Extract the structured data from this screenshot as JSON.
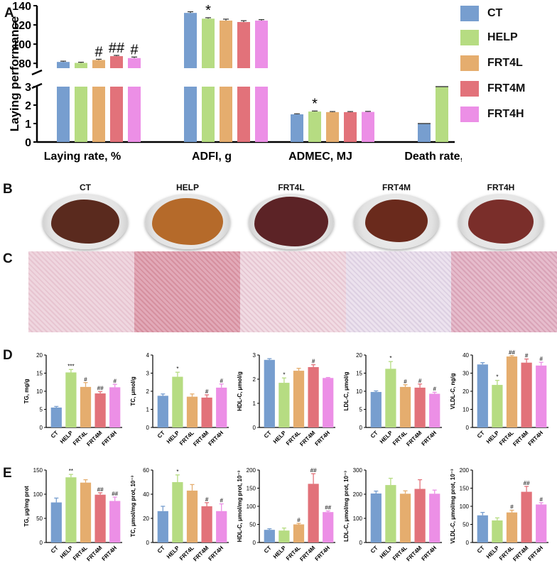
{
  "panel_labels": {
    "a": "A",
    "b": "B",
    "c": "C",
    "d": "D",
    "e": "E"
  },
  "colors": {
    "CT": "#779ecf",
    "HELP": "#b6dc82",
    "FRT4L": "#e5ad6e",
    "FRT4M": "#e2727a",
    "FRT4H": "#ec8fe6"
  },
  "legend": [
    {
      "label": "CT",
      "color": "#779ecf"
    },
    {
      "label": "HELP",
      "color": "#b6dc82"
    },
    {
      "label": "FRT4L",
      "color": "#e5ad6e"
    },
    {
      "label": "FRT4M",
      "color": "#e2727a"
    },
    {
      "label": "FRT4H",
      "color": "#ec8fe6"
    }
  ],
  "photos": {
    "titles": [
      "CT",
      "HELP",
      "FRT4L",
      "FRT4M",
      "FRT4H"
    ],
    "liver_colors": [
      "#5a2a1e",
      "#b56a2a",
      "#5c2326",
      "#6a2a1c",
      "#7a2e2a"
    ]
  },
  "histology_tints": [
    "#efd6df",
    "#e2a9b8",
    "#f1dbe3",
    "#ece2ee",
    "#e6bccc"
  ],
  "chart_data": [
    {
      "id": "A",
      "type": "bar",
      "ylabel": "Laying performance",
      "categories": [
        "Laying rate, %",
        "ADFI, g",
        "ADMEC, MJ",
        "Death rate, %"
      ],
      "series_names": [
        "CT",
        "HELP",
        "FRT4L",
        "FRT4M",
        "FRT4H"
      ],
      "values": [
        [
          81.5,
          80.5,
          83.5,
          87.5,
          85.5
        ],
        [
          132.5,
          126.5,
          124.5,
          123,
          124.5
        ],
        [
          1.5,
          1.65,
          1.62,
          1.62,
          1.63
        ],
        [
          1,
          3,
          0,
          0,
          0
        ]
      ],
      "errors": [
        [
          0.8,
          0.7,
          0.8,
          0.8,
          1.1
        ],
        [
          1.2,
          1.0,
          1.5,
          1.4,
          1.0
        ],
        [
          0.03,
          0.03,
          0.03,
          0.03,
          0.03
        ],
        [
          0,
          0,
          0,
          0,
          0
        ]
      ],
      "annotations": [
        [
          "",
          "",
          "#",
          "##",
          "#"
        ],
        [
          "",
          "*",
          "",
          "",
          ""
        ],
        [
          "",
          "*",
          "",
          "",
          ""
        ],
        [
          "",
          "",
          "",
          "",
          ""
        ]
      ],
      "broken_axis": {
        "lower": [
          0,
          3
        ],
        "upper": [
          75,
          140
        ]
      },
      "lower_ticks": [
        0,
        1,
        2,
        3
      ],
      "upper_ticks": [
        80,
        100,
        120,
        140
      ]
    },
    {
      "id": "D1",
      "type": "bar",
      "ylabel": "TG, mg/g",
      "categories": [
        "CT",
        "HELP",
        "FRT4L",
        "FRT4M",
        "FRT4H"
      ],
      "values": [
        5.5,
        15.2,
        11.2,
        9.4,
        11.1
      ],
      "errors": [
        0.3,
        0.8,
        1.2,
        0.5,
        0.8
      ],
      "annotations": [
        "",
        "***",
        "#",
        "##",
        "#"
      ],
      "ylim": [
        0,
        20
      ],
      "ticks": [
        0,
        5,
        10,
        15,
        20
      ]
    },
    {
      "id": "D2",
      "type": "bar",
      "ylabel": "TC, μmol/g",
      "categories": [
        "CT",
        "HELP",
        "FRT4L",
        "FRT4M",
        "FRT4H"
      ],
      "values": [
        1.75,
        2.8,
        1.7,
        1.65,
        2.2
      ],
      "errors": [
        0.1,
        0.25,
        0.15,
        0.15,
        0.2
      ],
      "annotations": [
        "",
        "*",
        "",
        "#",
        "#"
      ],
      "ylim": [
        0,
        4
      ],
      "ticks": [
        0,
        1,
        2,
        3,
        4
      ]
    },
    {
      "id": "D3",
      "type": "bar",
      "ylabel": "HDL-C, μmol/g",
      "categories": [
        "CT",
        "HELP",
        "FRT4L",
        "FRT4M",
        "FRT4H"
      ],
      "values": [
        2.8,
        1.85,
        2.35,
        2.5,
        2.05
      ],
      "errors": [
        0.05,
        0.2,
        0.1,
        0.1,
        0.02
      ],
      "annotations": [
        "",
        "*",
        "",
        "#",
        ""
      ],
      "ylim": [
        0,
        3
      ],
      "ticks": [
        0,
        1,
        2,
        3
      ]
    },
    {
      "id": "D4",
      "type": "bar",
      "ylabel": "LDL-C, μmol/g",
      "categories": [
        "CT",
        "HELP",
        "FRT4L",
        "FRT4M",
        "FRT4H"
      ],
      "values": [
        9.8,
        16.2,
        11.2,
        11.0,
        9.3
      ],
      "errors": [
        0.3,
        2.0,
        0.6,
        1.0,
        0.4
      ],
      "annotations": [
        "",
        "*",
        "#",
        "#",
        "#"
      ],
      "ylim": [
        0,
        20
      ],
      "ticks": [
        0,
        5,
        10,
        15,
        20
      ]
    },
    {
      "id": "D5",
      "type": "bar",
      "ylabel": "VLDL-C, ng/g",
      "categories": [
        "CT",
        "HELP",
        "FRT4L",
        "FRT4M",
        "FRT4H"
      ],
      "values": [
        34.8,
        23.5,
        39.2,
        35.8,
        34.2
      ],
      "errors": [
        1.0,
        2.5,
        0.5,
        2.0,
        1.8
      ],
      "annotations": [
        "",
        "*",
        "##",
        "#",
        "#"
      ],
      "ylim": [
        0,
        40
      ],
      "ticks": [
        0,
        10,
        20,
        30,
        40
      ]
    },
    {
      "id": "E1",
      "type": "bar",
      "ylabel": "TG, μg/mg prot",
      "categories": [
        "CT",
        "HELP",
        "FRT4L",
        "FRT4M",
        "FRT4H"
      ],
      "values": [
        83,
        135,
        124,
        99,
        86
      ],
      "errors": [
        9,
        6,
        6,
        4,
        8
      ],
      "annotations": [
        "",
        "**",
        "",
        "##",
        "##"
      ],
      "ylim": [
        0,
        150
      ],
      "ticks": [
        0,
        50,
        100,
        150
      ]
    },
    {
      "id": "E2",
      "type": "bar",
      "ylabel": "TC, μmol/mg prot, 10⁻³",
      "categories": [
        "CT",
        "HELP",
        "FRT4L",
        "FRT4M",
        "FRT4H"
      ],
      "values": [
        26,
        50,
        43,
        30,
        26
      ],
      "errors": [
        4,
        6,
        5,
        3,
        6
      ],
      "annotations": [
        "",
        "*",
        "",
        "#",
        "#"
      ],
      "ylim": [
        0,
        60
      ],
      "ticks": [
        0,
        20,
        40,
        60
      ]
    },
    {
      "id": "E3",
      "type": "bar",
      "ylabel": "HDL-C, μmol/mg prot, 10⁻³",
      "categories": [
        "CT",
        "HELP",
        "FRT4L",
        "FRT4M",
        "FRT4H"
      ],
      "values": [
        35,
        33,
        50,
        162,
        84
      ],
      "errors": [
        3,
        7,
        3,
        28,
        3
      ],
      "annotations": [
        "",
        "",
        "#",
        "##",
        "##"
      ],
      "ylim": [
        0,
        200
      ],
      "ticks": [
        0,
        50,
        100,
        150,
        200
      ]
    },
    {
      "id": "E4",
      "type": "bar",
      "ylabel": "LDL-C, μmol/mg prot, 10⁻³",
      "categories": [
        "CT",
        "HELP",
        "FRT4L",
        "FRT4M",
        "FRT4H"
      ],
      "values": [
        203,
        238,
        202,
        222,
        202
      ],
      "errors": [
        10,
        28,
        12,
        38,
        15
      ],
      "annotations": [
        "",
        "",
        "",
        "",
        ""
      ],
      "ylim": [
        0,
        300
      ],
      "ticks": [
        0,
        100,
        200,
        300
      ]
    },
    {
      "id": "E5",
      "type": "bar",
      "ylabel": "VLDL-C, μmol/mg prot, 10⁻³",
      "categories": [
        "CT",
        "HELP",
        "FRT4L",
        "FRT4M",
        "FRT4H"
      ],
      "values": [
        75,
        61,
        83,
        140,
        105
      ],
      "errors": [
        8,
        7,
        6,
        15,
        5
      ],
      "annotations": [
        "",
        "",
        "#",
        "##",
        "#"
      ],
      "ylim": [
        0,
        200
      ],
      "ticks": [
        0,
        50,
        100,
        150,
        200
      ]
    }
  ]
}
